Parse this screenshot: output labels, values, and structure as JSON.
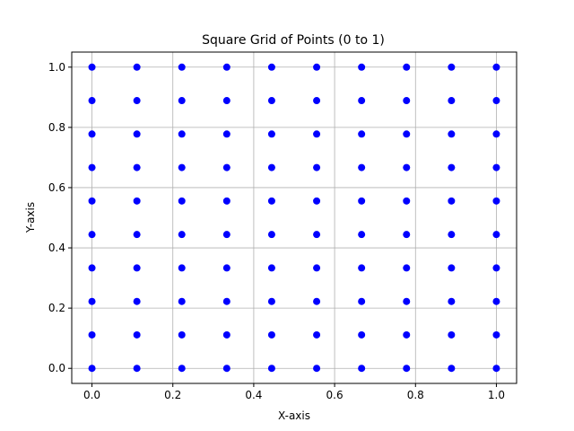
{
  "chart_data": {
    "type": "scatter",
    "title": "Square Grid of Points (0 to 1)",
    "xlabel": "X-axis",
    "ylabel": "Y-axis",
    "xlim": [
      -0.05,
      1.05
    ],
    "ylim": [
      -0.05,
      1.05
    ],
    "xticks": [
      0.0,
      0.2,
      0.4,
      0.6,
      0.8,
      1.0
    ],
    "yticks": [
      0.0,
      0.2,
      0.4,
      0.6,
      0.8,
      1.0
    ],
    "xtick_labels": [
      "0.0",
      "0.2",
      "0.4",
      "0.6",
      "0.8",
      "1.0"
    ],
    "ytick_labels": [
      "0.0",
      "0.2",
      "0.4",
      "0.6",
      "0.8",
      "1.0"
    ],
    "grid": true,
    "grid_values": [
      0,
      0.1111,
      0.2222,
      0.3333,
      0.4444,
      0.5556,
      0.6667,
      0.7778,
      0.8889,
      1.0
    ],
    "point_color": "#0000ff",
    "grid_color": "#b0b0b0"
  }
}
